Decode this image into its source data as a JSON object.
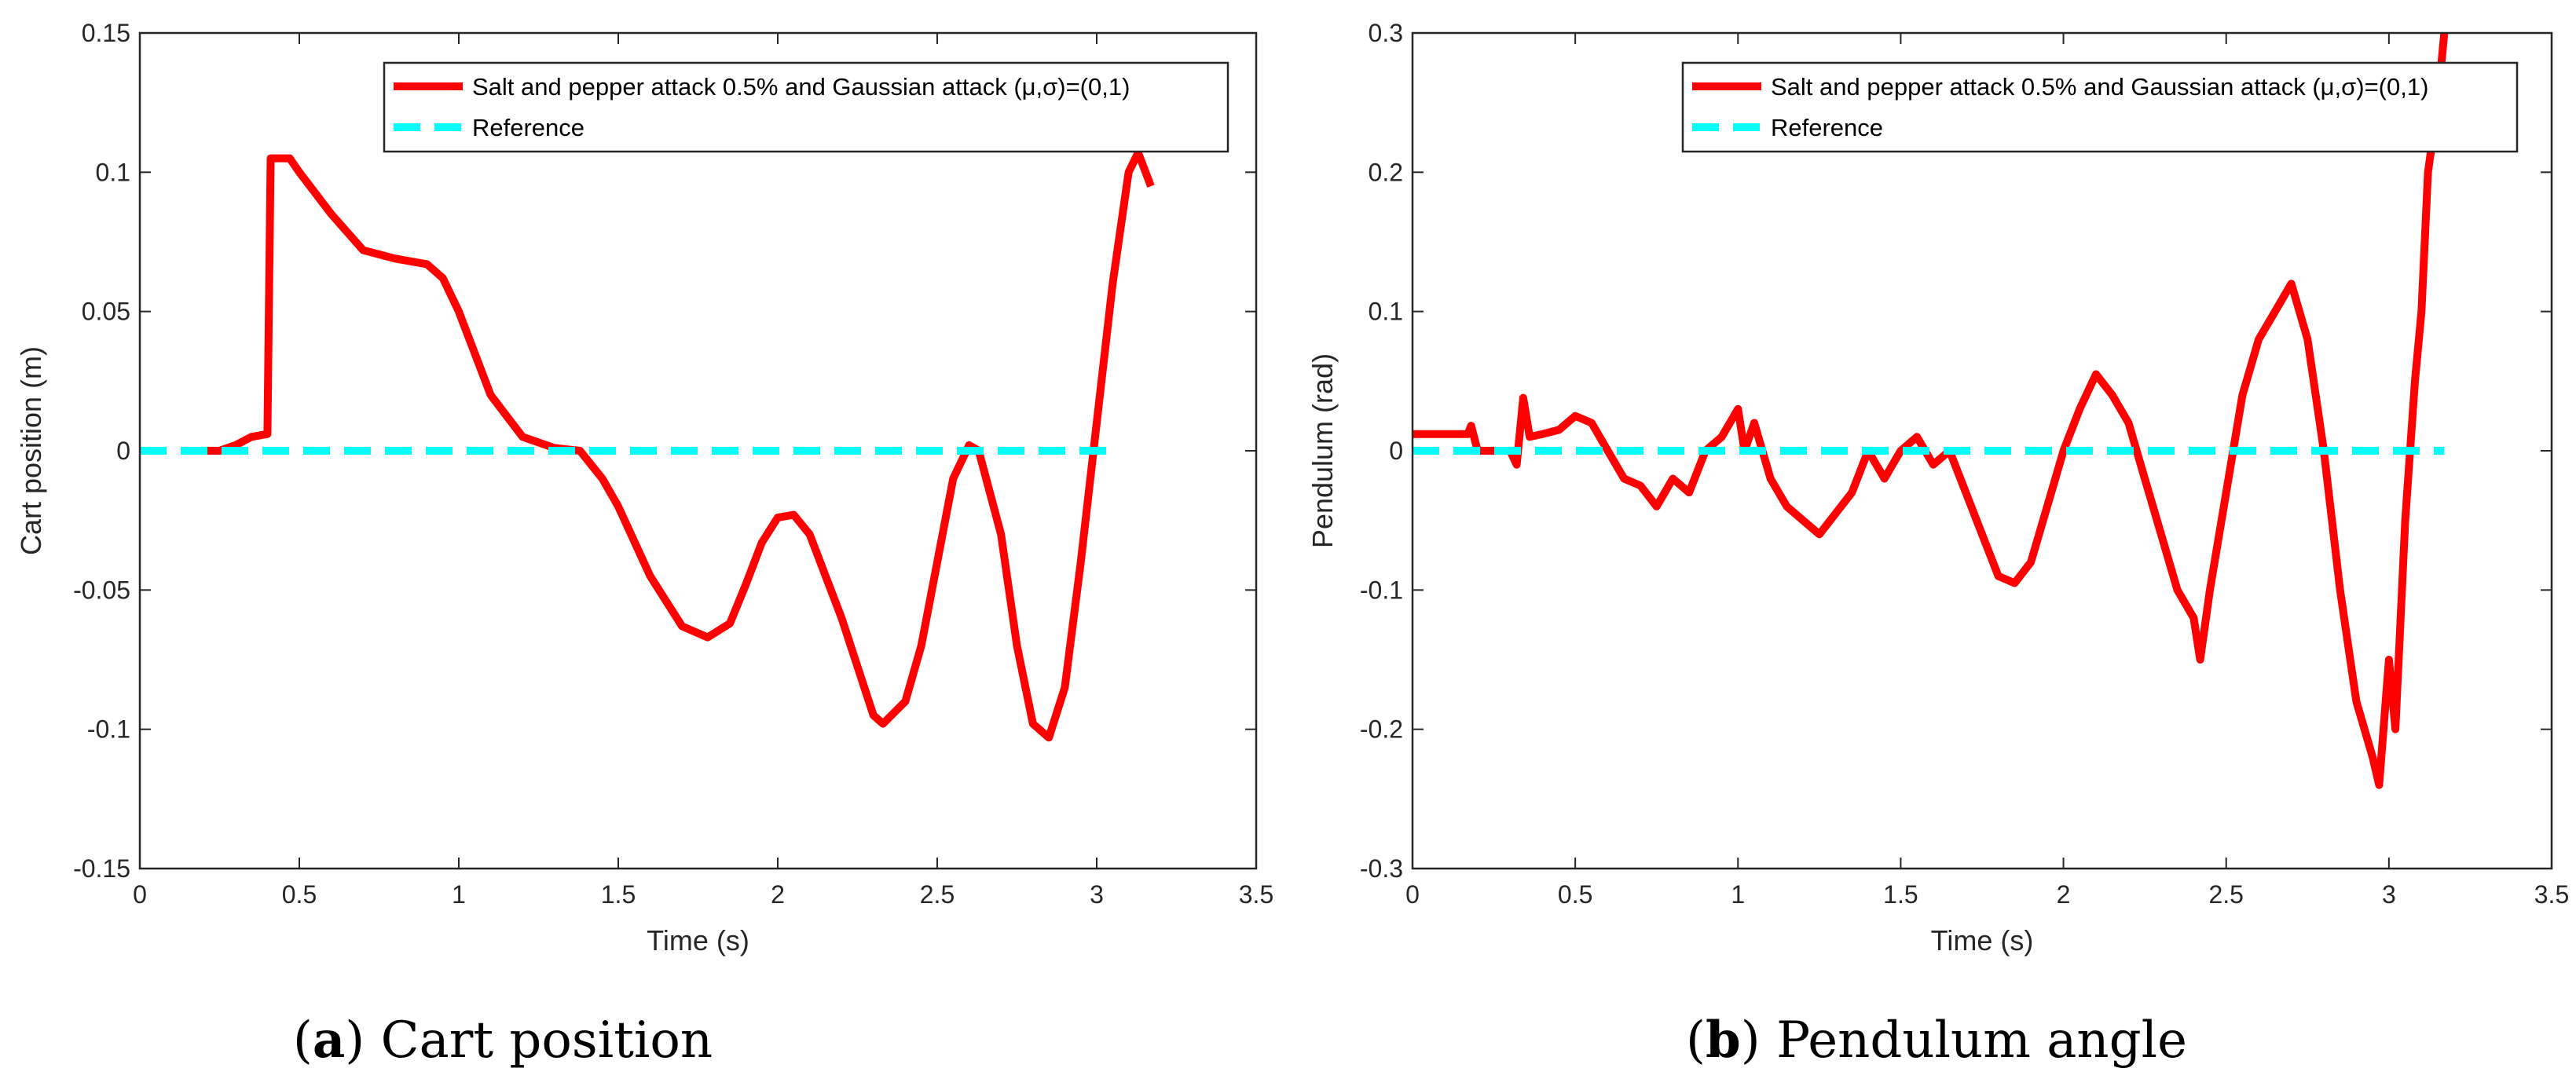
{
  "chart_data": [
    {
      "type": "line",
      "xlabel": "Time (s)",
      "ylabel": "Cart position (m)",
      "caption_parts": [
        "(",
        "a",
        ") Cart position"
      ],
      "xlim": [
        0,
        3.5
      ],
      "xticks": [
        0,
        0.5,
        1,
        1.5,
        2,
        2.5,
        3,
        3.5
      ],
      "ylim": [
        -0.15,
        0.15
      ],
      "yticks": [
        -0.15,
        -0.1,
        -0.05,
        0,
        0.05,
        0.1,
        0.15
      ],
      "series": [
        {
          "name": "Salt and pepper attack 0.5% and Gaussian attack (μ,σ)=(0,1)",
          "color": "#ff0000",
          "x": [
            0.13,
            0.25,
            0.3,
            0.35,
            0.4,
            0.41,
            0.47,
            0.5,
            0.6,
            0.7,
            0.8,
            0.9,
            0.95,
            1.0,
            1.1,
            1.2,
            1.3,
            1.38,
            1.45,
            1.5,
            1.6,
            1.7,
            1.78,
            1.85,
            1.9,
            1.95,
            2.0,
            2.05,
            2.1,
            2.2,
            2.3,
            2.33,
            2.4,
            2.45,
            2.5,
            2.55,
            2.6,
            2.63,
            2.7,
            2.75,
            2.8,
            2.85,
            2.9,
            2.95,
            3.0,
            3.05,
            3.1,
            3.13,
            3.17
          ],
          "values": [
            0,
            0,
            0.002,
            0.005,
            0.006,
            0.105,
            0.105,
            0.1,
            0.085,
            0.072,
            0.069,
            0.067,
            0.062,
            0.05,
            0.02,
            0.005,
            0.001,
            0,
            -0.01,
            -0.02,
            -0.045,
            -0.063,
            -0.067,
            -0.062,
            -0.048,
            -0.033,
            -0.024,
            -0.023,
            -0.03,
            -0.06,
            -0.095,
            -0.098,
            -0.09,
            -0.07,
            -0.04,
            -0.01,
            0.002,
            0,
            -0.03,
            -0.07,
            -0.098,
            -0.103,
            -0.085,
            -0.04,
            0.01,
            0.06,
            0.1,
            0.107,
            0.095
          ]
        },
        {
          "name": "Reference",
          "color": "#00ffff",
          "dashed": true,
          "x": [
            0,
            3.05
          ],
          "values": [
            0,
            0
          ]
        }
      ]
    },
    {
      "type": "line",
      "xlabel": "Time (s)",
      "ylabel": "Pendulum (rad)",
      "caption_parts": [
        "(",
        "b",
        ") Pendulum angle"
      ],
      "xlim": [
        0,
        3.5
      ],
      "xticks": [
        0,
        0.5,
        1,
        1.5,
        2,
        2.5,
        3,
        3.5
      ],
      "ylim": [
        -0.3,
        0.3
      ],
      "yticks": [
        -0.3,
        -0.2,
        -0.1,
        0,
        0.1,
        0.2,
        0.3
      ],
      "series": [
        {
          "name": "Salt and pepper attack 0.5% and Gaussian attack (μ,σ)=(0,1)",
          "color": "#ff0000",
          "x": [
            0,
            0.17,
            0.18,
            0.2,
            0.3,
            0.32,
            0.34,
            0.36,
            0.4,
            0.45,
            0.5,
            0.55,
            0.6,
            0.65,
            0.7,
            0.75,
            0.8,
            0.85,
            0.9,
            0.95,
            1.0,
            1.02,
            1.05,
            1.1,
            1.15,
            1.2,
            1.25,
            1.3,
            1.35,
            1.4,
            1.45,
            1.5,
            1.55,
            1.6,
            1.65,
            1.7,
            1.75,
            1.8,
            1.85,
            1.9,
            1.95,
            2.0,
            2.05,
            2.1,
            2.15,
            2.2,
            2.25,
            2.3,
            2.35,
            2.4,
            2.42,
            2.45,
            2.5,
            2.55,
            2.6,
            2.65,
            2.7,
            2.75,
            2.8,
            2.85,
            2.9,
            2.95,
            2.97,
            3.0,
            3.02,
            3.05,
            3.08,
            3.1,
            3.12,
            3.15,
            3.17
          ],
          "values": [
            0.012,
            0.012,
            0.018,
            0,
            0,
            -0.01,
            0.038,
            0.01,
            0.012,
            0.015,
            0.025,
            0.02,
            0,
            -0.02,
            -0.025,
            -0.04,
            -0.02,
            -0.03,
            0,
            0.01,
            0.03,
            0,
            0.02,
            -0.02,
            -0.04,
            -0.05,
            -0.06,
            -0.045,
            -0.03,
            0,
            -0.02,
            0,
            0.01,
            -0.01,
            0,
            -0.03,
            -0.06,
            -0.09,
            -0.095,
            -0.08,
            -0.04,
            0,
            0.03,
            0.055,
            0.04,
            0.02,
            -0.02,
            -0.06,
            -0.1,
            -0.12,
            -0.15,
            -0.1,
            -0.03,
            0.04,
            0.08,
            0.1,
            0.12,
            0.08,
            0,
            -0.1,
            -0.18,
            -0.22,
            -0.24,
            -0.15,
            -0.2,
            -0.05,
            0.05,
            0.1,
            0.2,
            0.25,
            0.3
          ]
        },
        {
          "name": "Reference",
          "color": "#00ffff",
          "dashed": true,
          "x": [
            0,
            3.17
          ],
          "values": [
            0,
            0
          ]
        }
      ]
    }
  ]
}
